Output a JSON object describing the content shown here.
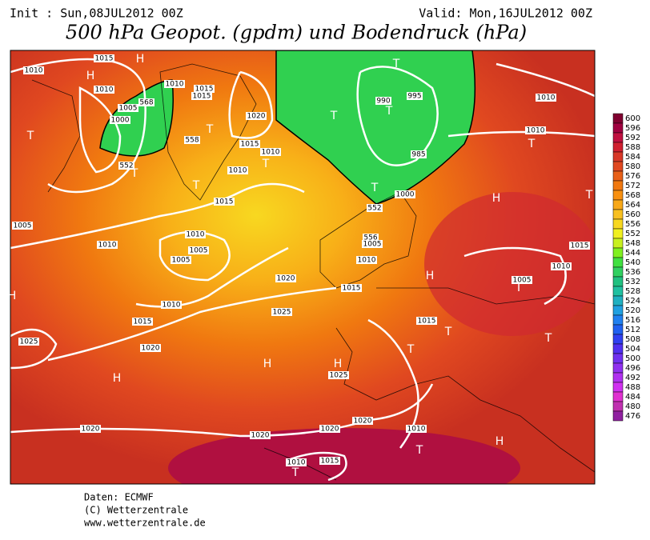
{
  "header": {
    "init": "Init : Sun,08JUL2012 00Z",
    "valid": "Valid: Mon,16JUL2012 00Z",
    "title": "500 hPa Geopot. (gpdm) und Bodendruck (hPa)"
  },
  "colorbar": {
    "levels": [
      600,
      596,
      592,
      588,
      584,
      580,
      576,
      572,
      568,
      564,
      560,
      556,
      552,
      548,
      544,
      540,
      536,
      532,
      528,
      524,
      520,
      516,
      512,
      508,
      504,
      500,
      496,
      492,
      488,
      484,
      480,
      476
    ],
    "colors": [
      "#800030",
      "#a00040",
      "#c01040",
      "#d02030",
      "#d83828",
      "#e04820",
      "#e86018",
      "#f07810",
      "#f89010",
      "#f8a818",
      "#f8c020",
      "#f8d820",
      "#f0f020",
      "#c8f020",
      "#80f020",
      "#40e040",
      "#30d060",
      "#20c080",
      "#20c0a0",
      "#20b0c0",
      "#20a0e0",
      "#2080f0",
      "#2060f0",
      "#3040f0",
      "#5030f0",
      "#7030f0",
      "#9030f0",
      "#b030f0",
      "#d030f0",
      "#e030d0",
      "#c030b0",
      "#9020a0"
    ]
  },
  "map": {
    "labels": [
      "1015",
      "H",
      "1010",
      "H",
      "1010",
      "1015",
      "1015",
      "1010",
      "568",
      "1005",
      "1000",
      "558",
      "1020",
      "1015",
      "1010",
      "1010",
      "552",
      "T",
      "T",
      "T",
      "T",
      "T",
      "T",
      "T",
      "990",
      "995",
      "T",
      "1010",
      "1010",
      "T",
      "985",
      "T",
      "1000",
      "552",
      "1015",
      "H",
      "T",
      "1005",
      "1010",
      "1010",
      "1005",
      "1005",
      "556",
      "1005",
      "1010",
      "1015",
      "1010",
      "1020",
      "1015",
      "H",
      "1005",
      "T",
      "H",
      "1010",
      "1025",
      "1015",
      "1015",
      "T",
      "T",
      "1025",
      "1020",
      "T",
      "H",
      "H",
      "1025",
      "H",
      "1020",
      "1020",
      "1020",
      "1020",
      "1010",
      "T",
      "H",
      "1010",
      "1015",
      "T"
    ]
  },
  "footer": [
    "Daten: ECMWF",
    "(C) Wetterzentrale",
    "www.wetterzentrale.de"
  ]
}
